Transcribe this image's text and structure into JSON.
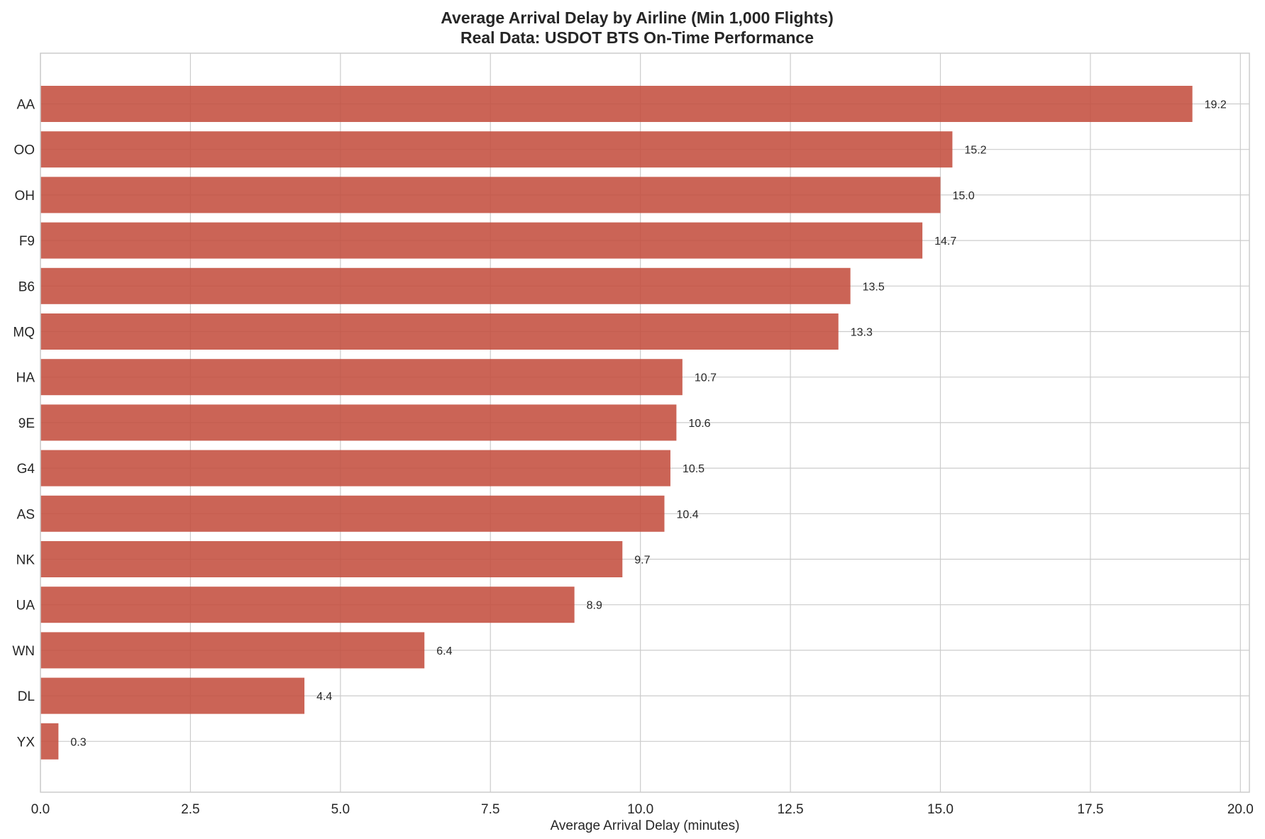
{
  "chart_data": {
    "type": "bar",
    "orientation": "horizontal",
    "title": "Average Arrival Delay by Airline (Min 1,000 Flights)",
    "subtitle": "Real Data: USDOT BTS On-Time Performance",
    "xlabel": "Average Arrival Delay (minutes)",
    "ylabel": "",
    "xlim": [
      0,
      20.15
    ],
    "xticks": [
      0.0,
      2.5,
      5.0,
      7.5,
      10.0,
      12.5,
      15.0,
      17.5,
      20.0
    ],
    "xtick_labels": [
      "0.0",
      "2.5",
      "5.0",
      "7.5",
      "10.0",
      "12.5",
      "15.0",
      "17.5",
      "20.0"
    ],
    "grid": true,
    "bar_color": "#c44e3f",
    "categories": [
      "AA",
      "OO",
      "OH",
      "F9",
      "B6",
      "MQ",
      "HA",
      "9E",
      "G4",
      "AS",
      "NK",
      "UA",
      "WN",
      "DL",
      "YX"
    ],
    "values": [
      19.2,
      15.2,
      15.0,
      14.7,
      13.5,
      13.3,
      10.7,
      10.6,
      10.5,
      10.4,
      9.7,
      8.9,
      6.4,
      4.4,
      0.3
    ],
    "value_labels": [
      "19.2",
      "15.2",
      "15.0",
      "14.7",
      "13.5",
      "13.3",
      "10.7",
      "10.6",
      "10.5",
      "10.4",
      "9.7",
      "8.9",
      "6.4",
      "4.4",
      "0.3"
    ]
  }
}
